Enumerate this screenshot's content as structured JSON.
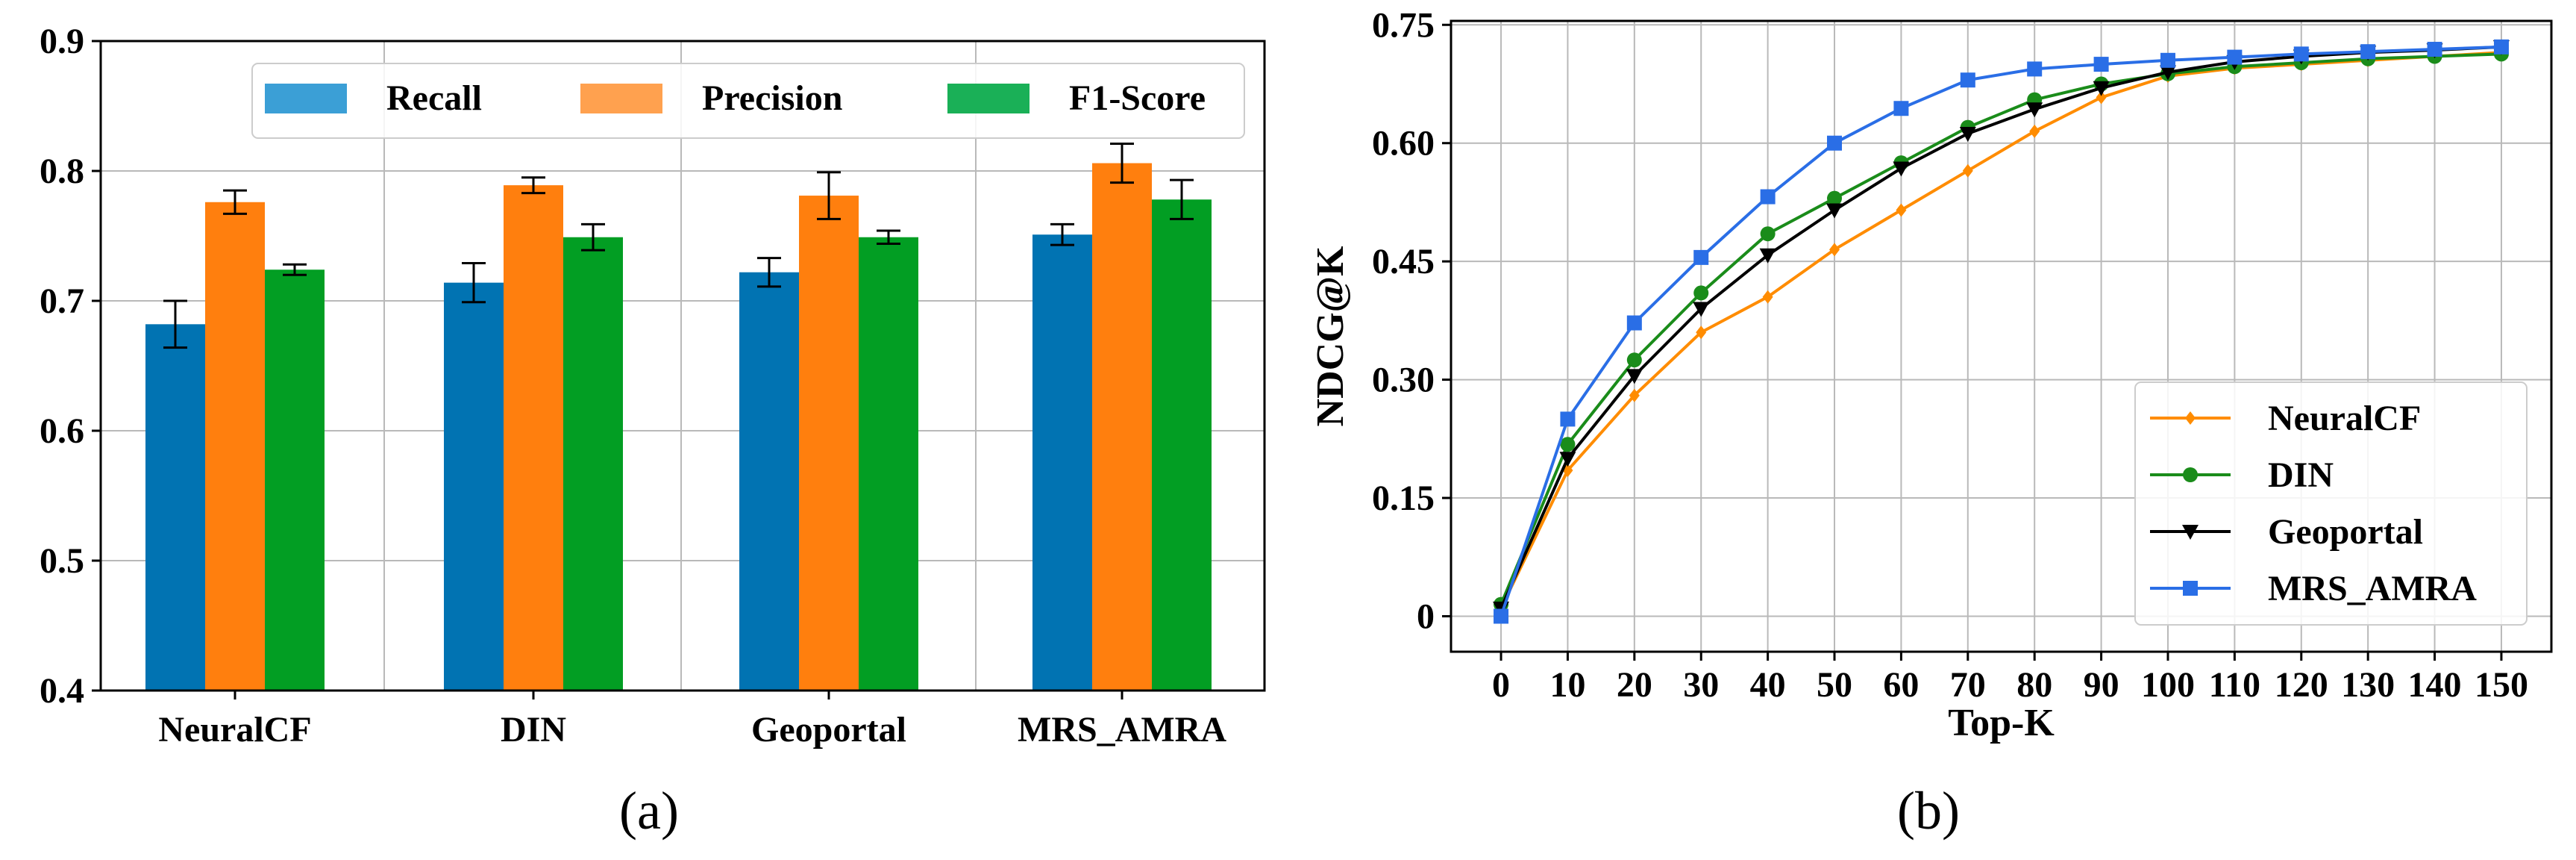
{
  "chart_data": [
    {
      "id": "a",
      "type": "bar",
      "panel_label": "(a)",
      "categories": [
        "NeuralCF",
        "DIN",
        "Geoportal",
        "MRS_AMRA"
      ],
      "series": [
        {
          "name": "Recall",
          "color": "#0173b2",
          "legend_color": "#3b9fd6",
          "values": [
            0.682,
            0.714,
            0.722,
            0.751
          ],
          "errors": [
            0.018,
            0.015,
            0.011,
            0.008
          ]
        },
        {
          "name": "Precision",
          "color": "#ff7f0e",
          "legend_color": "#ffa14f",
          "values": [
            0.776,
            0.789,
            0.781,
            0.806
          ],
          "errors": [
            0.009,
            0.006,
            0.018,
            0.015
          ]
        },
        {
          "name": "F1-Score",
          "color": "#029e23",
          "legend_color": "#1ab057",
          "values": [
            0.724,
            0.749,
            0.749,
            0.778
          ],
          "errors": [
            0.004,
            0.01,
            0.005,
            0.015
          ]
        }
      ],
      "ylim": [
        0.4,
        0.9
      ],
      "yticks": [
        "0.4",
        "0.5",
        "0.6",
        "0.7",
        "0.8",
        "0.9"
      ],
      "xlabel": "",
      "ylabel": "",
      "legend_position": "top"
    },
    {
      "id": "b",
      "type": "line",
      "panel_label": "(b)",
      "x": [
        0,
        10,
        20,
        30,
        40,
        50,
        60,
        70,
        80,
        90,
        100,
        110,
        120,
        130,
        140,
        150
      ],
      "xticks": [
        "0",
        "10",
        "20",
        "30",
        "40",
        "50",
        "60",
        "70",
        "80",
        "90",
        "100",
        "110",
        "120",
        "130",
        "140",
        "150"
      ],
      "series": [
        {
          "name": "NeuralCF",
          "color": "#ff8c00",
          "marker": "diamond",
          "values": [
            0.01,
            0.185,
            0.28,
            0.36,
            0.405,
            0.465,
            0.515,
            0.565,
            0.615,
            0.658,
            0.685,
            0.695,
            0.7,
            0.705,
            0.71,
            0.715
          ]
        },
        {
          "name": "DIN",
          "color": "#1a8c1a",
          "marker": "circle",
          "values": [
            0.015,
            0.218,
            0.325,
            0.41,
            0.485,
            0.53,
            0.575,
            0.62,
            0.655,
            0.675,
            0.688,
            0.697,
            0.702,
            0.707,
            0.71,
            0.713
          ]
        },
        {
          "name": "Geoportal",
          "color": "#000000",
          "marker": "triangle-down",
          "values": [
            0.01,
            0.2,
            0.305,
            0.39,
            0.458,
            0.515,
            0.568,
            0.612,
            0.643,
            0.67,
            0.69,
            0.703,
            0.71,
            0.715,
            0.718,
            0.722
          ]
        },
        {
          "name": "MRS_AMRA",
          "color": "#2a6ee6",
          "marker": "square",
          "values": [
            0.0,
            0.25,
            0.372,
            0.455,
            0.532,
            0.6,
            0.644,
            0.68,
            0.694,
            0.7,
            0.705,
            0.709,
            0.713,
            0.716,
            0.719,
            0.722
          ]
        }
      ],
      "ylim": [
        -0.045,
        0.755
      ],
      "yticks": [
        "0",
        "0.15",
        "0.30",
        "0.45",
        "0.60",
        "0.75"
      ],
      "ytick_values": [
        0,
        0.15,
        0.3,
        0.45,
        0.6,
        0.75
      ],
      "xlabel": "Top-K",
      "ylabel": "NDCG@K",
      "legend_position": "bottom-right"
    }
  ]
}
